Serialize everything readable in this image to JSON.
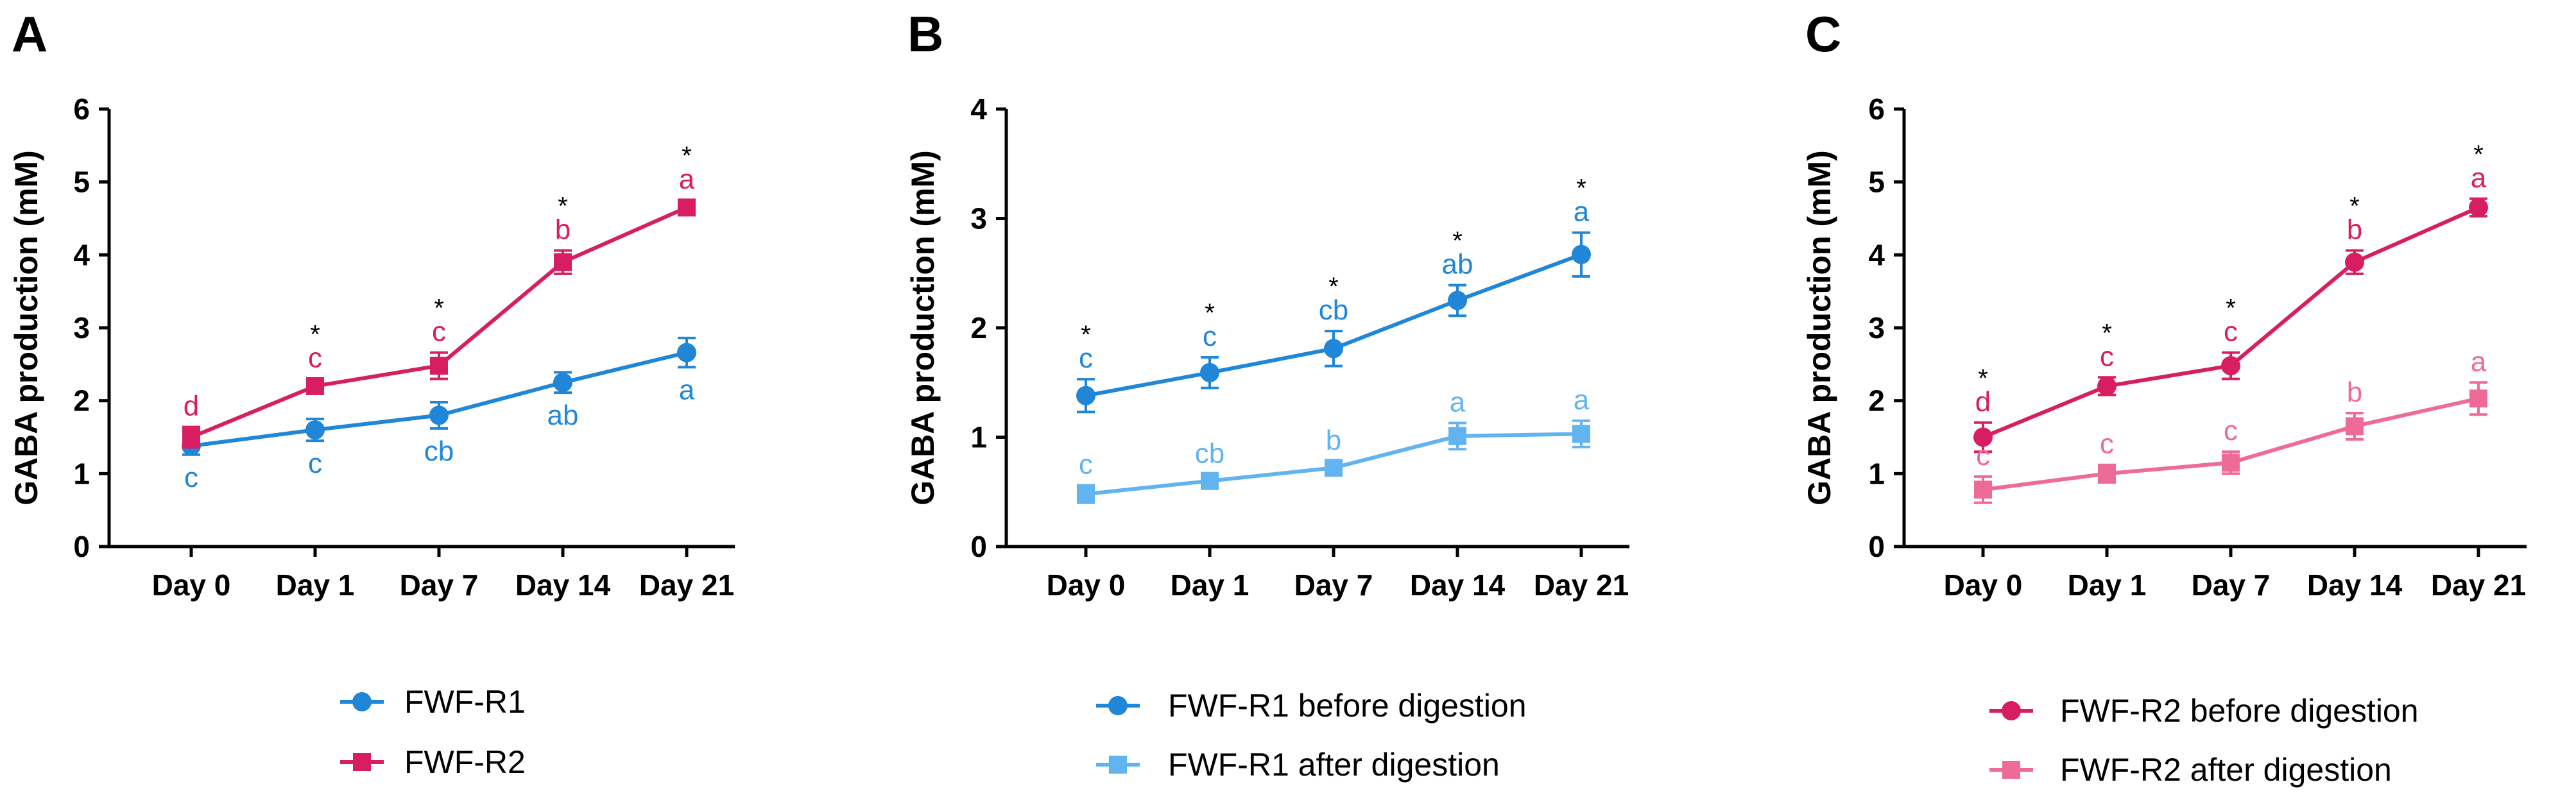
{
  "chart_data": [
    {
      "panel_label": "A",
      "type": "line",
      "ylabel": "GABA production (mM)",
      "xlabel": "",
      "categories": [
        "Day 0",
        "Day 1",
        "Day 7",
        "Day 14",
        "Day 21"
      ],
      "ylim": [
        0,
        6
      ],
      "yticks": [
        "0",
        "1",
        "2",
        "3",
        "4",
        "5",
        "6"
      ],
      "series": [
        {
          "name": "FWF-R1",
          "color": "#1f86d8",
          "marker": "circle",
          "values": [
            1.38,
            1.6,
            1.8,
            2.25,
            2.66
          ],
          "errors": [
            0.12,
            0.15,
            0.18,
            0.14,
            0.2
          ],
          "letters": [
            "c",
            "c",
            "cb",
            "ab",
            "a"
          ],
          "letter_position": "below"
        },
        {
          "name": "FWF-R2",
          "color": "#d81e62",
          "marker": "square",
          "values": [
            1.5,
            2.2,
            2.48,
            3.9,
            4.65
          ],
          "errors": [
            0.14,
            0.1,
            0.18,
            0.16,
            0.1
          ],
          "letters": [
            "d",
            "c",
            "c",
            "b",
            "a"
          ],
          "letter_position": "above",
          "stars": [
            "",
            "*",
            "*",
            "*",
            "*"
          ]
        }
      ],
      "legend": "bottom"
    },
    {
      "panel_label": "B",
      "type": "line",
      "ylabel": "GABA production (mM)",
      "xlabel": "",
      "categories": [
        "Day 0",
        "Day 1",
        "Day 7",
        "Day 14",
        "Day 21"
      ],
      "ylim": [
        0,
        4
      ],
      "yticks": [
        "0",
        "1",
        "2",
        "3",
        "4"
      ],
      "series": [
        {
          "name": "FWF-R1 before digestion",
          "color": "#1f86d8",
          "marker": "circle",
          "values": [
            1.38,
            1.59,
            1.81,
            2.25,
            2.67
          ],
          "errors": [
            0.15,
            0.14,
            0.16,
            0.14,
            0.2
          ],
          "letters": [
            "c",
            "c",
            "cb",
            "ab",
            "a"
          ],
          "letter_position": "above",
          "stars": [
            "*",
            "*",
            "*",
            "*",
            "*"
          ]
        },
        {
          "name": "FWF-R1 after digestion",
          "color": "#62b4f0",
          "marker": "square",
          "values": [
            0.48,
            0.6,
            0.72,
            1.01,
            1.03
          ],
          "errors": [
            0.08,
            0.06,
            0.06,
            0.12,
            0.12
          ],
          "letters": [
            "c",
            "cb",
            "b",
            "a",
            "a"
          ],
          "letter_position": "above"
        }
      ],
      "legend": "bottom"
    },
    {
      "panel_label": "C",
      "type": "line",
      "ylabel": "GABA production (mM)",
      "xlabel": "",
      "categories": [
        "Day 0",
        "Day 1",
        "Day 7",
        "Day 14",
        "Day 21"
      ],
      "ylim": [
        0,
        6
      ],
      "yticks": [
        "0",
        "1",
        "2",
        "3",
        "4",
        "5",
        "6"
      ],
      "series": [
        {
          "name": "FWF-R2 before digestion",
          "color": "#d81e62",
          "marker": "circle",
          "values": [
            1.5,
            2.2,
            2.48,
            3.9,
            4.65
          ],
          "errors": [
            0.2,
            0.12,
            0.18,
            0.16,
            0.12
          ],
          "letters": [
            "d",
            "c",
            "c",
            "b",
            "a"
          ],
          "letter_position": "above",
          "stars": [
            "*",
            "*",
            "*",
            "*",
            "*"
          ]
        },
        {
          "name": "FWF-R2 after digestion",
          "color": "#ee6b98",
          "marker": "square",
          "values": [
            0.78,
            1.0,
            1.15,
            1.65,
            2.03
          ],
          "errors": [
            0.18,
            0.12,
            0.15,
            0.18,
            0.22
          ],
          "letters": [
            "c",
            "c",
            "c",
            "b",
            "a"
          ],
          "letter_position": "above"
        }
      ],
      "legend": "bottom"
    }
  ]
}
